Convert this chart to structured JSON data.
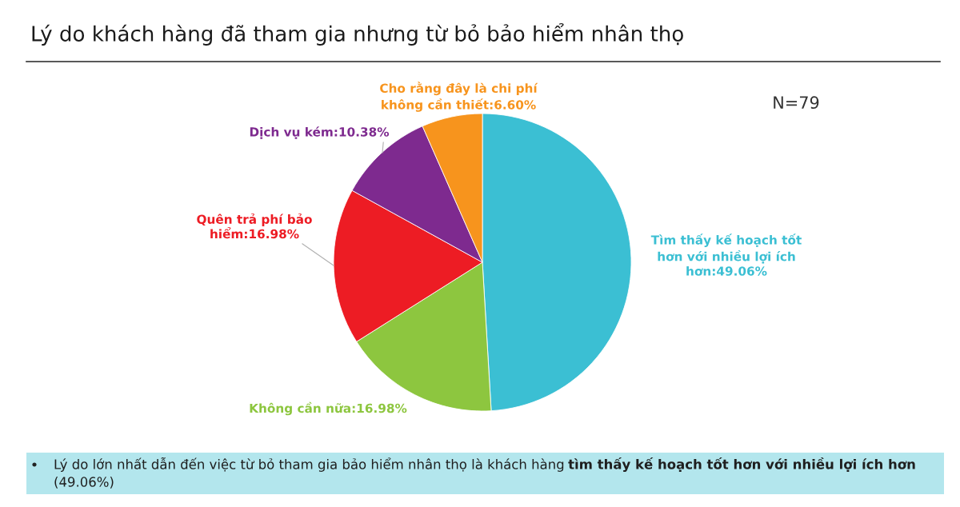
{
  "chart_data": {
    "type": "pie",
    "title": "Lý do khách hàng đã tham gia nhưng từ bỏ bảo hiểm nhân thọ",
    "categories": [
      "Tìm thấy kế hoạch tốt\nhơn với nhiều lợi ích\nhơn",
      "Không cần nữa",
      "Quên trả phí bảo\nhiểm",
      "Dịch vụ kém",
      "Cho rằng đây là chi phí\nkhông cần thiết"
    ],
    "values": [
      49.06,
      16.98,
      16.98,
      10.38,
      6.6
    ],
    "value_labels": [
      "49.06%",
      "16.98%",
      "16.98%",
      "10.38%",
      "6.60%"
    ],
    "colors": [
      "#3bbfd3",
      "#8dc63f",
      "#ed1c24",
      "#7e2a8f",
      "#f7941d"
    ],
    "annotations": [
      "N=79",
      "Lý do lớn nhất dẫn đến việc từ bỏ tham gia bảo hiểm nhân thọ là khách hàng",
      "tìm thấy kế hoạch tốt hơn với nhiều lợi ích hơn",
      "(49.06%)"
    ]
  }
}
